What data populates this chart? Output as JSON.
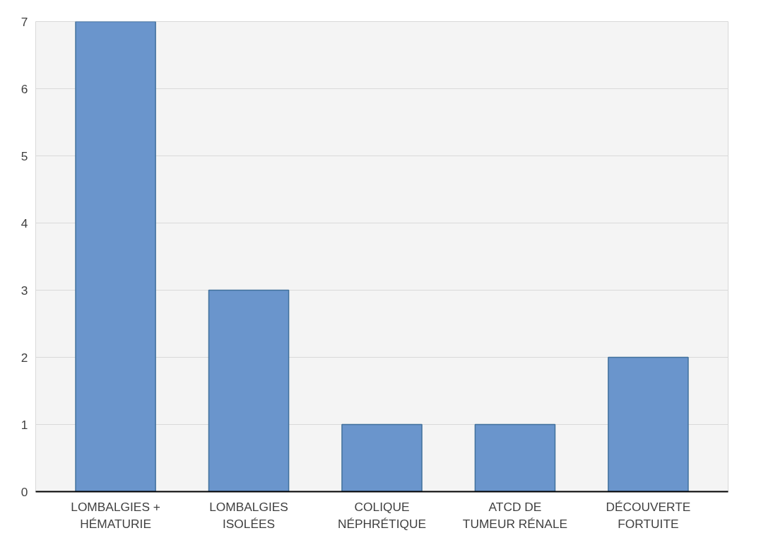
{
  "chart_data": {
    "type": "bar",
    "categories": [
      "LOMBALGIES +\nHÉMATURIE",
      "LOMBALGIES\nISOLÉES",
      "COLIQUE\nNÉPHRÉTIQUE",
      "ATCD DE\nTUMEUR RÉNALE",
      "DÉCOUVERTE\nFORTUITE"
    ],
    "values": [
      7,
      3,
      1,
      1,
      2
    ],
    "color": "#6a95cc",
    "ylim": [
      0,
      7
    ],
    "yticks": [
      0,
      1,
      2,
      3,
      4,
      5,
      6,
      7
    ],
    "grid": "y"
  }
}
